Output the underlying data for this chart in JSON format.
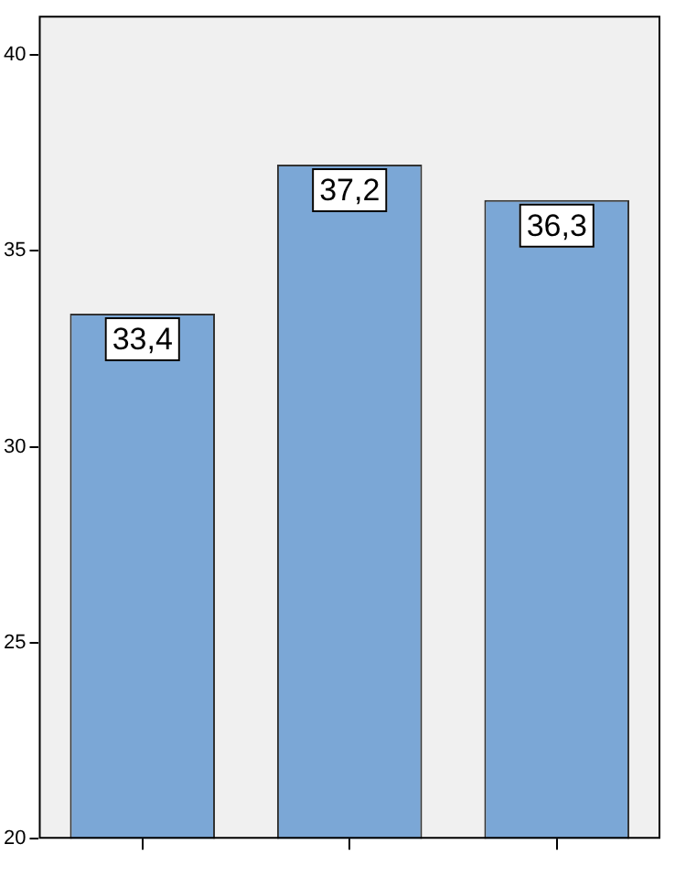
{
  "chart_data": {
    "type": "bar",
    "categories": [
      null,
      null,
      null
    ],
    "values": [
      33.4,
      37.2,
      36.3
    ],
    "value_labels": [
      "33,4",
      "37,2",
      "36,3"
    ],
    "color": "#7ba7d6",
    "ylim": [
      20,
      41
    ],
    "yticks": [
      20,
      25,
      30,
      35,
      40
    ],
    "grid": false,
    "legend": false
  }
}
